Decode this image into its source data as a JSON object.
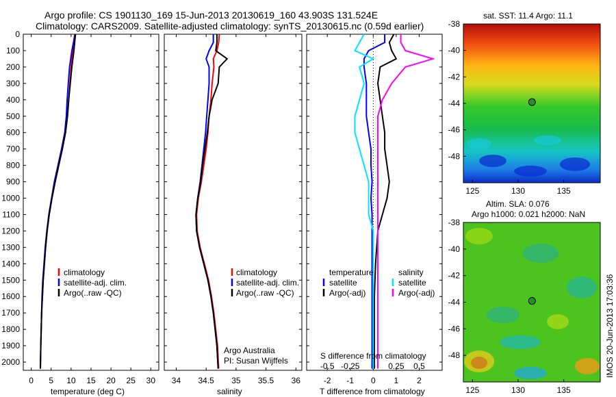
{
  "header": {
    "line1": "Argo profile: CS 1901130_169 15-Jun-2013 20130619_160 43.903S 131.524E",
    "line2": "Climatology: CARS2009. Satellite-adjusted climatology: synTS_20130615.nc (0.59d earlier)"
  },
  "side_label": "IMOS 20-Jun-2013 17:03:36",
  "colors": {
    "climatology": "#ff0000",
    "satellite": "#0000ff",
    "argo": "#000000",
    "sal_satellite": "#00e5ff",
    "sal_argo": "#ff00ff",
    "marker": "#2e8b2e"
  },
  "chart_data": [
    {
      "type": "line",
      "id": "temperature",
      "xlabel": "temperature (deg C)",
      "ylabel": "",
      "xlim": [
        -2,
        32
      ],
      "ylim": [
        2050,
        0
      ],
      "xticks": [
        "0",
        "5",
        "10",
        "15",
        "20",
        "25",
        "30"
      ],
      "yticks": [
        "0",
        "100",
        "200",
        "300",
        "400",
        "500",
        "600",
        "700",
        "800",
        "900",
        "1000",
        "1100",
        "1200",
        "1300",
        "1400",
        "1500",
        "1600",
        "1700",
        "1800",
        "1900",
        "2000"
      ],
      "depth": [
        0,
        100,
        200,
        300,
        400,
        500,
        600,
        700,
        800,
        900,
        1000,
        1100,
        1200,
        1300,
        1400,
        1500,
        1600,
        1700,
        1800,
        1900,
        2040
      ],
      "series": [
        {
          "name": "climatology",
          "values": [
            10.9,
            10.4,
            10.0,
            9.7,
            9.4,
            9.1,
            8.6,
            7.8,
            6.9,
            6.0,
            5.2,
            4.5,
            4.0,
            3.6,
            3.3,
            3.0,
            2.8,
            2.6,
            2.5,
            2.4,
            2.3
          ]
        },
        {
          "name": "satellite-adj. clim.",
          "values": [
            11.0,
            10.2,
            9.6,
            9.3,
            9.0,
            8.8,
            8.4,
            7.6,
            6.7,
            5.8,
            5.1,
            4.4,
            3.9,
            3.5,
            3.2,
            2.9,
            2.7,
            2.6,
            2.5,
            2.4,
            2.3
          ]
        },
        {
          "name": "Argo(..raw -QC)",
          "values": [
            11.1,
            10.7,
            10.2,
            9.8,
            9.4,
            9.1,
            8.6,
            7.8,
            6.9,
            6.0,
            5.2,
            4.5,
            4.0,
            3.6,
            3.3,
            3.0,
            2.8,
            2.6,
            2.5,
            2.4,
            2.3
          ]
        }
      ],
      "legend": [
        "climatology",
        "satellite-adj. clim.",
        "Argo(..raw -QC)"
      ]
    },
    {
      "type": "line",
      "id": "salinity",
      "xlabel": "salinity",
      "xlim": [
        33.8,
        36.1
      ],
      "ylim": [
        2050,
        0
      ],
      "xticks": [
        "34",
        "34.5",
        "35",
        "35.5",
        "36"
      ],
      "depth": [
        0,
        50,
        100,
        150,
        200,
        300,
        400,
        500,
        600,
        700,
        800,
        900,
        1000,
        1100,
        1200,
        1300,
        1400,
        1500,
        1600,
        1700,
        1800,
        1900,
        2040
      ],
      "series": [
        {
          "name": "climatology",
          "values": [
            34.72,
            34.71,
            34.68,
            34.62,
            34.63,
            34.6,
            34.58,
            34.55,
            34.53,
            34.5,
            34.46,
            34.42,
            34.37,
            34.34,
            34.35,
            34.4,
            34.47,
            34.54,
            34.59,
            34.63,
            34.66,
            34.69,
            34.71
          ]
        },
        {
          "name": "satellite-adj. clim.",
          "values": [
            34.62,
            34.62,
            34.55,
            34.5,
            34.55,
            34.55,
            34.53,
            34.51,
            34.49,
            34.46,
            34.43,
            34.4,
            34.36,
            34.33,
            34.34,
            34.39,
            34.46,
            34.53,
            34.58,
            34.62,
            34.65,
            34.68,
            34.7
          ]
        },
        {
          "name": "Argo(..raw -QC)",
          "values": [
            34.68,
            34.68,
            34.66,
            34.85,
            34.72,
            34.7,
            34.6,
            34.55,
            34.52,
            34.48,
            34.44,
            34.41,
            34.36,
            34.33,
            34.34,
            34.39,
            34.46,
            34.53,
            34.58,
            34.62,
            34.65,
            34.68,
            34.7
          ]
        }
      ],
      "legend": [
        "climatology",
        "satellite-adj. clim.",
        "Argo(..raw -QC)"
      ],
      "annotation": [
        "Argo Australia",
        "PI: Susan Wijffels"
      ]
    },
    {
      "type": "line",
      "id": "differences",
      "xlabel": "T difference from climatology",
      "xlabel2": "S difference from climatology",
      "xlim": [
        -2.9,
        3.0
      ],
      "ylim": [
        2050,
        0
      ],
      "xticks": [
        "-2",
        "-1",
        "0",
        "1",
        "2"
      ],
      "xticks_s": [
        "-0.5",
        "-0.25",
        "0",
        "0.25",
        "0.5"
      ],
      "depth": [
        0,
        50,
        100,
        150,
        200,
        300,
        400,
        500,
        600,
        700,
        800,
        900,
        1000,
        1100,
        1200,
        1400,
        1600,
        1800,
        2040
      ],
      "series": [
        {
          "name": "temperature satellite",
          "values": [
            0.5,
            0.5,
            -0.2,
            -0.4,
            -0.4,
            -0.3,
            -0.3,
            -0.3,
            -0.2,
            -0.1,
            -0.1,
            -0.05,
            -0.1,
            -0.05,
            -0.05,
            -0.05,
            -0.05,
            -0.05,
            -0.05
          ]
        },
        {
          "name": "temperature Argo(-adj)",
          "values": [
            0.9,
            0.7,
            0.8,
            1.0,
            0.3,
            0.2,
            0.3,
            0.4,
            0.5,
            0.5,
            0.6,
            0.7,
            0.6,
            0.4,
            0.2,
            0.1,
            0.05,
            0.05,
            0.05
          ]
        },
        {
          "name": "salinity satellite",
          "values": [
            -0.1,
            -0.15,
            -0.2,
            0.0,
            -0.15,
            -0.1,
            -0.15,
            -0.2,
            -0.2,
            -0.15,
            -0.1,
            -0.05,
            -0.05,
            -0.05,
            0.0,
            0.0,
            0.0,
            0.0,
            0.0
          ]
        },
        {
          "name": "salinity Argo(-adj)",
          "values": [
            0.3,
            0.3,
            0.35,
            0.65,
            0.35,
            0.2,
            0.1,
            0.05,
            0.05,
            0.05,
            0.05,
            0.05,
            0.05,
            0.05,
            0.05,
            0.05,
            0.05,
            0.05,
            0.05
          ]
        }
      ],
      "legend_headers": [
        "temperature",
        "salinity"
      ],
      "legend": [
        "satellite",
        "Argo(-adj)",
        "satellite",
        "Argo(-adj)"
      ]
    },
    {
      "type": "heatmap",
      "id": "sst_map",
      "title": "sat. SST: 11.4  Argo: 11.1",
      "xlim": [
        124,
        139
      ],
      "ylim": [
        -50,
        -38
      ],
      "xticks": [
        "125",
        "130",
        "135"
      ],
      "yticks": [
        "-38",
        "-40",
        "-42",
        "-44",
        "-46",
        "-48"
      ],
      "marker": {
        "lon": 131.524,
        "lat": -43.903
      }
    },
    {
      "type": "heatmap",
      "id": "sla_map",
      "title": "Altim. SLA: 0.076",
      "title2": "Argo h1000: 0.021 h2000: NaN",
      "xlim": [
        124,
        139
      ],
      "ylim": [
        -50,
        -38
      ],
      "xticks": [
        "125",
        "130",
        "135"
      ],
      "yticks": [
        "-38",
        "-40",
        "-42",
        "-44",
        "-46",
        "-48"
      ],
      "marker": {
        "lon": 131.524,
        "lat": -43.903
      }
    }
  ]
}
